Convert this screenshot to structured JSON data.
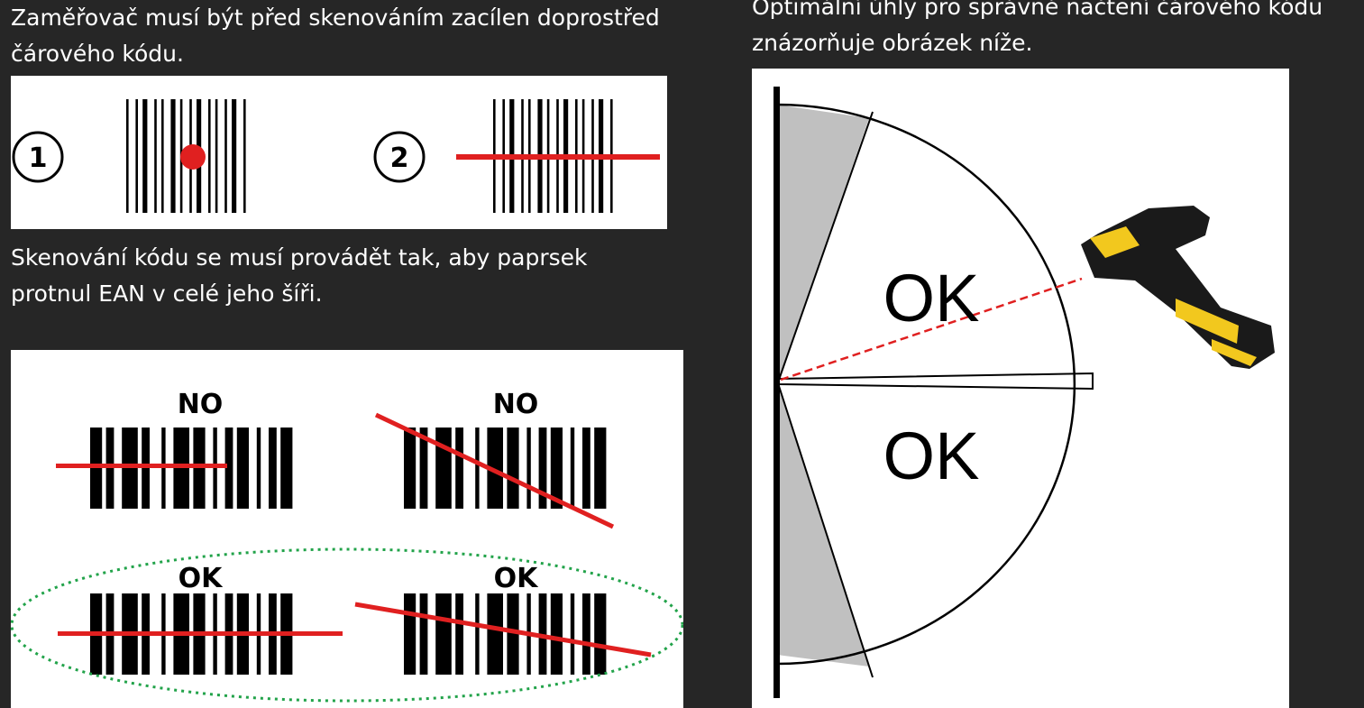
{
  "left": {
    "aim_text_line1": "Zaměřovač musí být před skenováním zacílen doprostřed",
    "aim_text_line2": "čárového kódu.",
    "aim_figure": {
      "step_one": "1",
      "step_two": "2"
    },
    "scan_text_line1": "Skenování kódu se musí provádět tak, aby paprsek",
    "scan_text_line2": "protnul EAN v celé jeho šíři.",
    "examples": {
      "no_label": "NO",
      "ok_label": "OK"
    }
  },
  "right": {
    "angle_text_line1": "Optimální úhly pro správné načtení čárového kódu",
    "angle_text_line2": "znázorňuje obrázek níže.",
    "angle_figure": {
      "upper_zone_label": "OK",
      "lower_zone_label": "OK",
      "scanner_icon": "barcode-scanner-icon"
    }
  },
  "colors": {
    "background": "#262626",
    "laser_red": "#e02020",
    "highlight_green": "#22a34a",
    "zone_gray": "#c0c0c0",
    "scanner_yellow": "#f2c81e"
  }
}
